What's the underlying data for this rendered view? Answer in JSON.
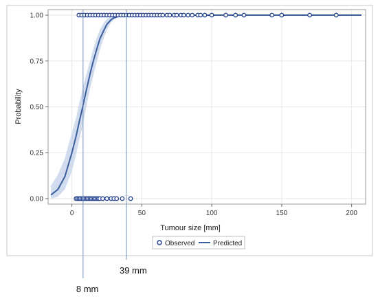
{
  "colors": {
    "background": "#ffffff",
    "frame": "#c8c8c8",
    "grid": "#e6e6e6",
    "axis": "#666666",
    "predicted_line": "#3a5d9c",
    "confidence_band": "#c9d6ec",
    "observed_marker": "#1f3d8a",
    "reference_line": "#7090b8"
  },
  "chart_data": {
    "type": "line",
    "xlabel": "Tumour size [mm]",
    "ylabel": "Probability",
    "xlim": [
      -17,
      210
    ],
    "ylim": [
      -0.03,
      1.03
    ],
    "grid": true,
    "x_ticks": [
      0,
      50,
      100,
      150,
      200
    ],
    "x_tick_labels": [
      "0",
      "50",
      "100",
      "150",
      "200"
    ],
    "y_ticks": [
      0,
      0.25,
      0.5,
      0.75,
      1
    ],
    "y_tick_labels": [
      "0.00",
      "0.25",
      "0.50",
      "0.75",
      "1.00"
    ],
    "legend": {
      "placement": "bottom",
      "entries": [
        {
          "label": "Observed",
          "marker": "circle"
        },
        {
          "label": "Predicted",
          "marker": "line"
        }
      ]
    },
    "series": [
      {
        "name": "Predicted",
        "kind": "line",
        "x": [
          -15,
          -10,
          -5,
          0,
          3,
          5,
          8,
          10,
          13,
          15,
          18,
          20,
          23,
          25,
          28,
          30,
          33,
          35,
          38,
          40,
          45,
          50,
          60,
          80,
          100,
          150,
          207
        ],
        "y": [
          0.02,
          0.05,
          0.12,
          0.25,
          0.34,
          0.41,
          0.51,
          0.58,
          0.68,
          0.74,
          0.82,
          0.87,
          0.92,
          0.95,
          0.975,
          0.985,
          0.993,
          0.996,
          0.998,
          0.999,
          1.0,
          1.0,
          1.0,
          1.0,
          1.0,
          1.0,
          1.0
        ],
        "lower": [
          0.0,
          0.01,
          0.05,
          0.15,
          0.24,
          0.31,
          0.41,
          0.49,
          0.6,
          0.66,
          0.75,
          0.81,
          0.88,
          0.92,
          0.96,
          0.975,
          0.99,
          0.993,
          0.996,
          0.998,
          1.0,
          1.0,
          1.0,
          1.0,
          1.0,
          1.0,
          1.0
        ],
        "upper": [
          0.07,
          0.13,
          0.22,
          0.36,
          0.44,
          0.51,
          0.61,
          0.67,
          0.75,
          0.81,
          0.88,
          0.92,
          0.96,
          0.98,
          0.99,
          0.995,
          0.998,
          0.999,
          1.0,
          1.0,
          1.0,
          1.0,
          1.0,
          1.0,
          1.0,
          1.0,
          1.0
        ]
      },
      {
        "name": "Observed",
        "kind": "scatter",
        "points": [
          {
            "x": 3,
            "y": 0
          },
          {
            "x": 4,
            "y": 0
          },
          {
            "x": 5,
            "y": 0
          },
          {
            "x": 6,
            "y": 0
          },
          {
            "x": 7,
            "y": 0
          },
          {
            "x": 8,
            "y": 0
          },
          {
            "x": 9,
            "y": 0
          },
          {
            "x": 10,
            "y": 0
          },
          {
            "x": 11,
            "y": 0
          },
          {
            "x": 12,
            "y": 0
          },
          {
            "x": 13,
            "y": 0
          },
          {
            "x": 14,
            "y": 0
          },
          {
            "x": 15,
            "y": 0
          },
          {
            "x": 16,
            "y": 0
          },
          {
            "x": 17,
            "y": 0
          },
          {
            "x": 18,
            "y": 0
          },
          {
            "x": 19,
            "y": 0
          },
          {
            "x": 20,
            "y": 0
          },
          {
            "x": 22,
            "y": 0
          },
          {
            "x": 25,
            "y": 0
          },
          {
            "x": 28,
            "y": 0
          },
          {
            "x": 30,
            "y": 0
          },
          {
            "x": 32,
            "y": 0
          },
          {
            "x": 36,
            "y": 0
          },
          {
            "x": 42,
            "y": 0
          },
          {
            "x": 5,
            "y": 1
          },
          {
            "x": 7,
            "y": 1
          },
          {
            "x": 9,
            "y": 1
          },
          {
            "x": 11,
            "y": 1
          },
          {
            "x": 13,
            "y": 1
          },
          {
            "x": 15,
            "y": 1
          },
          {
            "x": 17,
            "y": 1
          },
          {
            "x": 19,
            "y": 1
          },
          {
            "x": 21,
            "y": 1
          },
          {
            "x": 23,
            "y": 1
          },
          {
            "x": 25,
            "y": 1
          },
          {
            "x": 27,
            "y": 1
          },
          {
            "x": 29,
            "y": 1
          },
          {
            "x": 31,
            "y": 1
          },
          {
            "x": 33,
            "y": 1
          },
          {
            "x": 35,
            "y": 1
          },
          {
            "x": 37,
            "y": 1
          },
          {
            "x": 39,
            "y": 1
          },
          {
            "x": 41,
            "y": 1
          },
          {
            "x": 43,
            "y": 1
          },
          {
            "x": 45,
            "y": 1
          },
          {
            "x": 47,
            "y": 1
          },
          {
            "x": 49,
            "y": 1
          },
          {
            "x": 51,
            "y": 1
          },
          {
            "x": 53,
            "y": 1
          },
          {
            "x": 55,
            "y": 1
          },
          {
            "x": 57,
            "y": 1
          },
          {
            "x": 59,
            "y": 1
          },
          {
            "x": 61,
            "y": 1
          },
          {
            "x": 63,
            "y": 1
          },
          {
            "x": 65,
            "y": 1
          },
          {
            "x": 68,
            "y": 1
          },
          {
            "x": 70,
            "y": 1
          },
          {
            "x": 73,
            "y": 1
          },
          {
            "x": 75,
            "y": 1
          },
          {
            "x": 78,
            "y": 1
          },
          {
            "x": 80,
            "y": 1
          },
          {
            "x": 83,
            "y": 1
          },
          {
            "x": 86,
            "y": 1
          },
          {
            "x": 90,
            "y": 1
          },
          {
            "x": 92,
            "y": 1
          },
          {
            "x": 95,
            "y": 1
          },
          {
            "x": 100,
            "y": 1
          },
          {
            "x": 110,
            "y": 1
          },
          {
            "x": 117,
            "y": 1
          },
          {
            "x": 123,
            "y": 1
          },
          {
            "x": 143,
            "y": 1
          },
          {
            "x": 150,
            "y": 1
          },
          {
            "x": 170,
            "y": 1
          },
          {
            "x": 189,
            "y": 1
          }
        ]
      }
    ],
    "reference_lines": [
      {
        "x": 8,
        "label": "8 mm"
      },
      {
        "x": 39,
        "label": "39 mm"
      }
    ]
  }
}
